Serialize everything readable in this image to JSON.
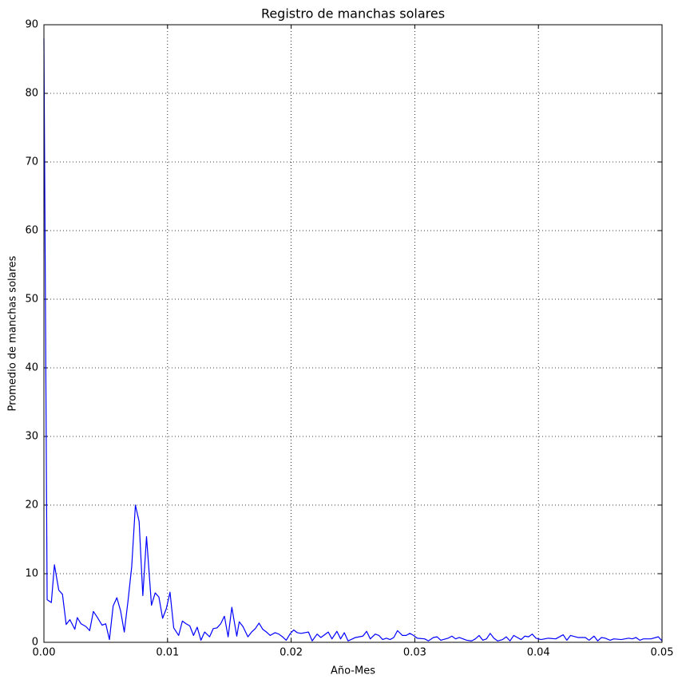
{
  "chart_data": {
    "type": "line",
    "title": "Registro de manchas solares",
    "xlabel": "Año-Mes",
    "ylabel": "Promedio de manchas solares",
    "color": "#0000ff",
    "grid": true,
    "xlim": [
      0,
      0.05
    ],
    "ylim": [
      0,
      90
    ],
    "xticks": [
      {
        "value": 0,
        "label": "0.00"
      },
      0.01,
      0.02,
      0.03,
      0.04,
      0.05
    ],
    "yticks": [
      0,
      10,
      20,
      30,
      40,
      50,
      60,
      70,
      80,
      90
    ],
    "x": [
      0,
      0.00026,
      0.0006,
      0.00085,
      0.0012,
      0.0015,
      0.0018,
      0.0021,
      0.0025,
      0.0027,
      0.003,
      0.0034,
      0.0037,
      0.004,
      0.0043,
      0.0047,
      0.005,
      0.0053,
      0.0056,
      0.0059,
      0.0062,
      0.0065,
      0.0068,
      0.0071,
      0.0074,
      0.0077,
      0.008,
      0.0083,
      0.0087,
      0.009,
      0.0093,
      0.0096,
      0.0099,
      0.0102,
      0.0105,
      0.0109,
      0.0112,
      0.0115,
      0.0118,
      0.0121,
      0.0124,
      0.0127,
      0.013,
      0.0134,
      0.0137,
      0.014,
      0.0143,
      0.0146,
      0.0149,
      0.0152,
      0.0156,
      0.0158,
      0.0161,
      0.0165,
      0.0168,
      0.0171,
      0.0174,
      0.0177,
      0.018,
      0.0183,
      0.0187,
      0.019,
      0.0193,
      0.0196,
      0.0199,
      0.0202,
      0.0205,
      0.0208,
      0.0214,
      0.0217,
      0.0221,
      0.0224,
      0.023,
      0.0233,
      0.0237,
      0.024,
      0.0243,
      0.0246,
      0.0252,
      0.0258,
      0.0261,
      0.0264,
      0.0268,
      0.0271,
      0.0274,
      0.0277,
      0.028,
      0.0283,
      0.0286,
      0.029,
      0.0293,
      0.0296,
      0.0299,
      0.0302,
      0.0308,
      0.0311,
      0.0315,
      0.0318,
      0.0321,
      0.0327,
      0.033,
      0.0333,
      0.0336,
      0.0342,
      0.0346,
      0.0349,
      0.0352,
      0.0355,
      0.0358,
      0.0361,
      0.0364,
      0.0367,
      0.0371,
      0.0374,
      0.0377,
      0.038,
      0.0383,
      0.0386,
      0.0389,
      0.0392,
      0.0395,
      0.0398,
      0.0402,
      0.0408,
      0.0414,
      0.042,
      0.0423,
      0.0426,
      0.0432,
      0.0438,
      0.0441,
      0.0445,
      0.0448,
      0.0451,
      0.0454,
      0.0458,
      0.0461,
      0.0467,
      0.0473,
      0.0476,
      0.0479,
      0.0482,
      0.0485,
      0.0491,
      0.0497,
      0.05
    ],
    "values": [
      88,
      6.2,
      5.8,
      11.3,
      7.6,
      7.0,
      2.6,
      3.3,
      1.9,
      3.6,
      2.7,
      2.3,
      1.7,
      4.5,
      3.7,
      2.5,
      2.7,
      0.4,
      5.3,
      6.5,
      4.6,
      1.5,
      6.0,
      11.0,
      20.0,
      17.6,
      6.8,
      15.4,
      5.4,
      7.2,
      6.6,
      3.5,
      4.9,
      7.3,
      2.1,
      1.0,
      3.1,
      2.7,
      2.4,
      1.0,
      2.2,
      0.3,
      1.5,
      0.8,
      2.0,
      2.1,
      2.7,
      3.8,
      0.8,
      5.1,
      0.9,
      3.0,
      2.3,
      0.8,
      1.5,
      2.0,
      2.8,
      1.9,
      1.5,
      1.0,
      1.4,
      1.2,
      0.8,
      0.3,
      1.2,
      1.8,
      1.4,
      1.3,
      1.5,
      0.2,
      1.2,
      0.7,
      1.5,
      0.5,
      1.6,
      0.5,
      1.4,
      0.2,
      0.7,
      0.9,
      1.6,
      0.5,
      1.2,
      1.0,
      0.4,
      0.6,
      0.4,
      0.7,
      1.7,
      1.0,
      1.0,
      1.3,
      1.0,
      0.6,
      0.5,
      0.2,
      0.7,
      0.8,
      0.3,
      0.6,
      0.9,
      0.5,
      0.7,
      0.3,
      0.2,
      0.5,
      1.0,
      0.3,
      0.5,
      1.3,
      0.6,
      0.2,
      0.4,
      0.8,
      0.2,
      1.0,
      0.7,
      0.4,
      0.9,
      0.8,
      1.2,
      0.6,
      0.4,
      0.6,
      0.5,
      1.1,
      0.3,
      1.0,
      0.7,
      0.7,
      0.3,
      0.9,
      0.2,
      0.7,
      0.6,
      0.3,
      0.5,
      0.4,
      0.6,
      0.5,
      0.7,
      0.3,
      0.5,
      0.5,
      0.8,
      0.2
    ]
  }
}
